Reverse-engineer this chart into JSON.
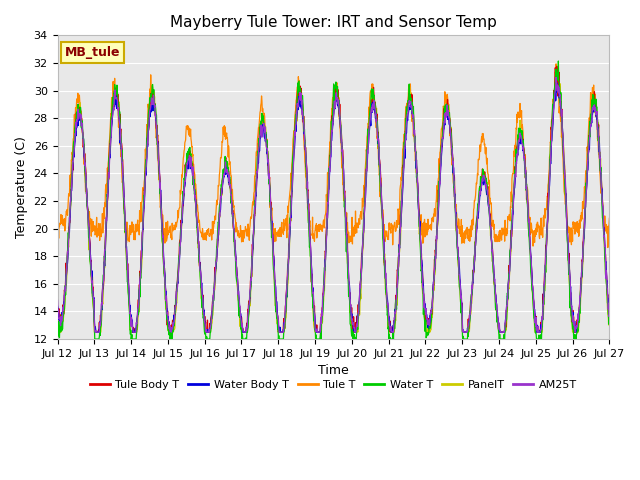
{
  "title": "Mayberry Tule Tower: IRT and Sensor Temp",
  "xlabel": "Time",
  "ylabel": "Temperature (C)",
  "ylim": [
    12,
    34
  ],
  "x_tick_labels": [
    "Jul 12",
    "Jul 13",
    "Jul 14",
    "Jul 15",
    "Jul 16",
    "Jul 17",
    "Jul 18",
    "Jul 19",
    "Jul 20",
    "Jul 21",
    "Jul 22",
    "Jul 23",
    "Jul 24",
    "Jul 25",
    "Jul 26",
    "Jul 27"
  ],
  "site_label": "MB_tule",
  "legend_entries": [
    "Tule Body T",
    "Water Body T",
    "Tule T",
    "Water T",
    "PanelT",
    "AM25T"
  ],
  "line_colors": [
    "#dd0000",
    "#0000dd",
    "#ff8800",
    "#00cc00",
    "#cccc00",
    "#9933cc"
  ],
  "background_color": "#e8e8e8",
  "fig_background": "#ffffff",
  "title_fontsize": 11,
  "label_fontsize": 9,
  "tick_fontsize": 8
}
